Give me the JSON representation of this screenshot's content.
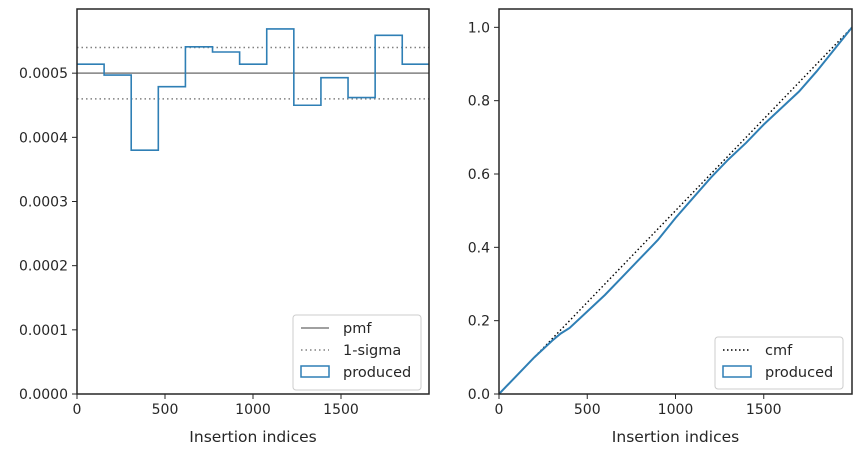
{
  "chart_data": [
    {
      "type": "histogram",
      "xlabel": "Insertion indices",
      "ylabel": "",
      "xlim": [
        0,
        2000
      ],
      "ylim": [
        0,
        0.0006
      ],
      "xticks": [
        0,
        500,
        1000,
        1500
      ],
      "xtick_labels": [
        "0",
        "500",
        "1000",
        "1500"
      ],
      "yticks": [
        0,
        0.0001,
        0.0002,
        0.0003,
        0.0004,
        0.0005
      ],
      "ytick_labels": [
        "0.0000",
        "0.0001",
        "0.0002",
        "0.0003",
        "0.0004",
        "0.0005"
      ],
      "bin_edges": [
        0,
        154,
        308,
        462,
        616,
        770,
        924,
        1078,
        1232,
        1386,
        1540,
        1694,
        1848,
        2000
      ],
      "values": [
        0.000514,
        0.000497,
        0.00038,
        0.000479,
        0.000541,
        0.000533,
        0.000514,
        0.000569,
        0.00045,
        0.000493,
        0.000462,
        0.000559,
        0.000514
      ],
      "pmf": 0.0005,
      "sigma_band": [
        0.00046,
        0.00054
      ],
      "legend": [
        "pmf",
        "1-sigma",
        "produced"
      ],
      "legend_position": "lower right",
      "colors": {
        "produced": "#2f7fb5",
        "pmf": "#808080",
        "sigma": "#808080"
      }
    },
    {
      "type": "line",
      "xlabel": "Insertion indices",
      "ylabel": "",
      "xlim": [
        0,
        2000
      ],
      "ylim": [
        0,
        1.05
      ],
      "xticks": [
        0,
        500,
        1000,
        1500
      ],
      "xtick_labels": [
        "0",
        "500",
        "1000",
        "1500"
      ],
      "yticks": [
        0,
        0.2,
        0.4,
        0.6,
        0.8,
        1.0
      ],
      "ytick_labels": [
        "0.0",
        "0.2",
        "0.4",
        "0.6",
        "0.8",
        "1.0"
      ],
      "series": [
        {
          "name": "cmf",
          "x": [
            0,
            2000
          ],
          "y": [
            0,
            1.0
          ]
        },
        {
          "name": "produced",
          "x": [
            0,
            100,
            200,
            300,
            350,
            400,
            500,
            600,
            700,
            800,
            850,
            900,
            1000,
            1100,
            1200,
            1300,
            1400,
            1500,
            1600,
            1700,
            1800,
            1900,
            2000
          ],
          "y": [
            0,
            0.05,
            0.1,
            0.145,
            0.165,
            0.18,
            0.225,
            0.27,
            0.32,
            0.37,
            0.395,
            0.42,
            0.48,
            0.535,
            0.59,
            0.64,
            0.685,
            0.735,
            0.78,
            0.825,
            0.88,
            0.94,
            1.0
          ]
        }
      ],
      "legend": [
        "cmf",
        "produced"
      ],
      "legend_position": "lower right",
      "colors": {
        "produced": "#2f7fb5",
        "cmf": "#000000"
      }
    }
  ]
}
